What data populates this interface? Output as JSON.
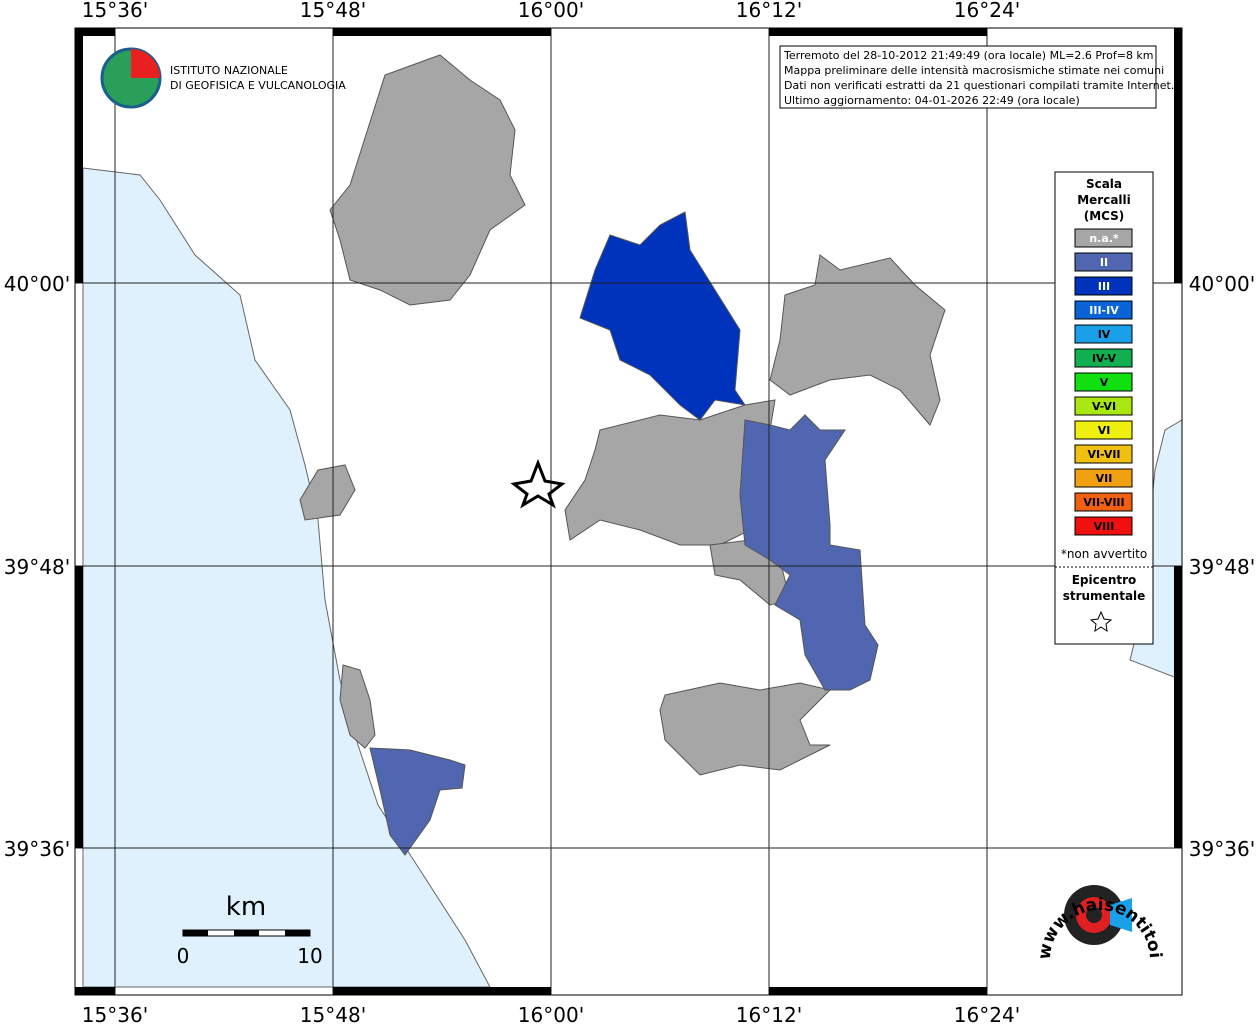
{
  "map": {
    "lon_labels": [
      "15°36'",
      "15°48'",
      "16°00'",
      "16°12'",
      "16°24'"
    ],
    "lat_labels": [
      "40°00'",
      "39°48'",
      "39°36'"
    ],
    "logo": {
      "line1": "ISTITUTO NAZIONALE",
      "line2": "DI GEOFISICA E VULCANOLOGIA"
    },
    "info": [
      "Terremoto del 28-10-2012 21:49:49 (ora locale) ML=2.6 Prof=8 km",
      "Mappa preliminare delle intensità macrosismiche stimate nei comuni",
      "Dati non verificati estratti da 21 questionari compilati tramite Internet.",
      "Ultimo aggiornamento: 04-01-2026 22:49 (ora locale)"
    ],
    "legend": {
      "title": [
        "Scala",
        "Mercalli",
        "(MCS)"
      ],
      "items": [
        {
          "label": "n.a.*",
          "color": "#a6a6a6"
        },
        {
          "label": "II",
          "color": "#5066b0"
        },
        {
          "label": "III",
          "color": "#0033bb"
        },
        {
          "label": "III-IV",
          "color": "#0a64d8"
        },
        {
          "label": "IV",
          "color": "#1aa0e8"
        },
        {
          "label": "IV-V",
          "color": "#10b050"
        },
        {
          "label": "V",
          "color": "#10e010"
        },
        {
          "label": "V-VI",
          "color": "#a8e810"
        },
        {
          "label": "VI",
          "color": "#f0f010"
        },
        {
          "label": "VI-VII",
          "color": "#f0c010"
        },
        {
          "label": "VII",
          "color": "#f0a010"
        },
        {
          "label": "VII-VIII",
          "color": "#f06010"
        },
        {
          "label": "VIII",
          "color": "#f01010"
        }
      ],
      "note": "*non avvertito",
      "epicenter": [
        "Epicentro",
        "strumentale"
      ]
    },
    "scale": {
      "unit": "km",
      "start": "0",
      "end": "10"
    },
    "site_logo": "www.haisentitoilterremoto.it"
  }
}
